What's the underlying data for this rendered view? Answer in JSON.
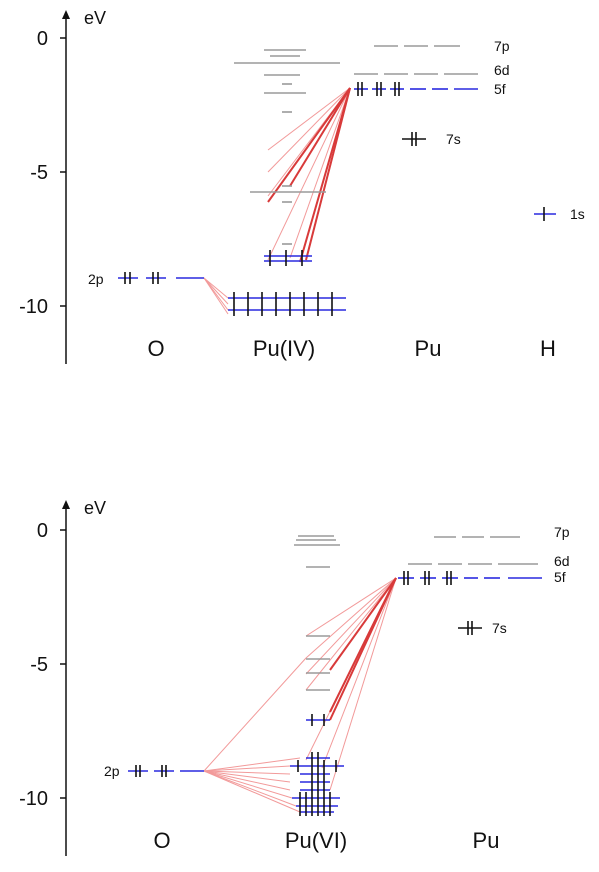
{
  "colors": {
    "axis": "#111111",
    "occupied_level": "#2a2adf",
    "unoccupied_level": "#9a9a9a",
    "correlation_line": "#f29a9a",
    "strong_correlation_line": "#d83a3a"
  },
  "diagrams": [
    {
      "unit": "eV",
      "ticks": [
        "0",
        "-5",
        "-10"
      ],
      "columns": [
        "O",
        "Pu(IV)",
        "Pu",
        "H"
      ],
      "orbital_labels": {
        "o_2p": "2p",
        "pu_7p": "7p",
        "pu_6d": "6d",
        "pu_5f": "5f",
        "pu_7s": "7s",
        "h_1s": "1s"
      }
    },
    {
      "unit": "eV",
      "ticks": [
        "0",
        "-5",
        "-10"
      ],
      "columns": [
        "O",
        "Pu(VI)",
        "Pu"
      ],
      "orbital_labels": {
        "o_2p": "2p",
        "pu_7p": "7p",
        "pu_6d": "6d",
        "pu_5f": "5f",
        "pu_7s": "7s"
      }
    }
  ]
}
